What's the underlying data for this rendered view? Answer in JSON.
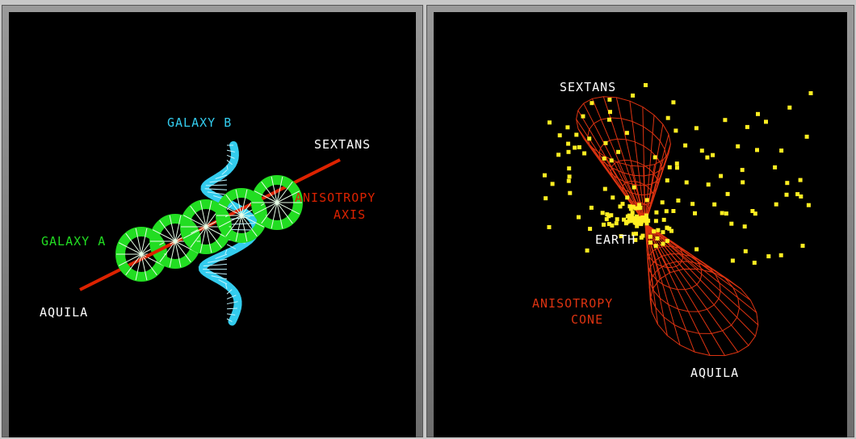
{
  "left_panel": {
    "labels": {
      "galaxy_b": "GALAXY B",
      "sextans": "SEXTANS",
      "anisotropy_axis_line1": "ANISOTROPY",
      "anisotropy_axis_line2": "AXIS",
      "galaxy_a": "GALAXY A",
      "aquila": "AQUILA"
    },
    "colors": {
      "galaxy_a": "#22dd22",
      "galaxy_b": "#33ccee",
      "axis": "#dd2200",
      "text": "#ffffff"
    }
  },
  "right_panel": {
    "labels": {
      "sextans": "SEXTANS",
      "earth": "EARTH",
      "anisotropy_cone_line1": "ANISOTROPY",
      "anisotropy_cone_line2": "CONE",
      "aquila": "AQUILA"
    },
    "colors": {
      "cone": "#dd3311",
      "points": "#ffee22",
      "text": "#ffffff"
    }
  }
}
